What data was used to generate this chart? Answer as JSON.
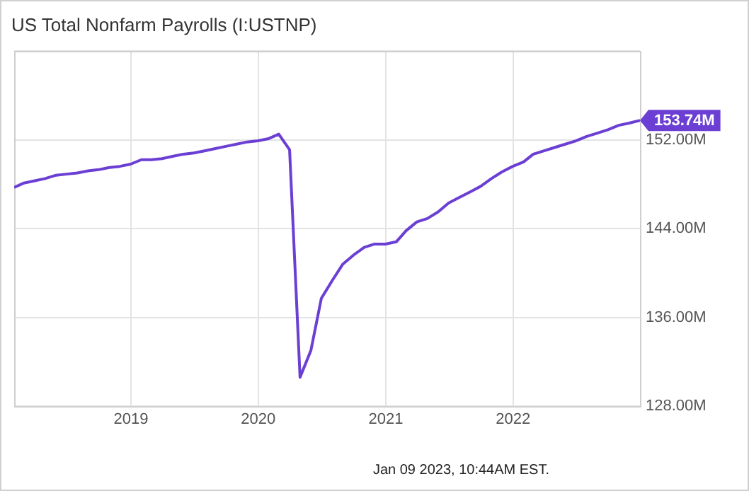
{
  "chart_data": {
    "type": "line",
    "title": "US Total Nonfarm Payrolls (I:USTNP)",
    "x": [
      "2018-01-31",
      "2018-02-28",
      "2018-03-31",
      "2018-04-30",
      "2018-05-31",
      "2018-06-30",
      "2018-07-31",
      "2018-08-31",
      "2018-09-30",
      "2018-10-31",
      "2018-11-30",
      "2018-12-31",
      "2019-01-31",
      "2019-02-28",
      "2019-03-31",
      "2019-04-30",
      "2019-05-31",
      "2019-06-30",
      "2019-07-31",
      "2019-08-31",
      "2019-09-30",
      "2019-10-31",
      "2019-11-30",
      "2019-12-31",
      "2020-01-31",
      "2020-02-29",
      "2020-03-31",
      "2020-04-30",
      "2020-05-31",
      "2020-06-30",
      "2020-07-31",
      "2020-08-31",
      "2020-09-30",
      "2020-10-31",
      "2020-11-30",
      "2020-12-31",
      "2021-01-31",
      "2021-02-28",
      "2021-03-31",
      "2021-04-30",
      "2021-05-31",
      "2021-06-30",
      "2021-07-31",
      "2021-08-31",
      "2021-09-30",
      "2021-10-31",
      "2021-11-30",
      "2021-12-31",
      "2022-01-31",
      "2022-02-28",
      "2022-03-31",
      "2022-04-30",
      "2022-05-31",
      "2022-06-30",
      "2022-07-31",
      "2022-08-31",
      "2022-09-30",
      "2022-10-31",
      "2022-11-30",
      "2022-12-31"
    ],
    "series": [
      {
        "color": "#6b3fd4",
        "values": [
          147.7,
          148.1,
          148.3,
          148.5,
          148.8,
          148.9,
          149.0,
          149.2,
          149.3,
          149.5,
          149.6,
          149.8,
          150.2,
          150.2,
          150.3,
          150.5,
          150.7,
          150.8,
          151.0,
          151.2,
          151.4,
          151.6,
          151.8,
          151.9,
          152.1,
          152.5,
          151.1,
          130.6,
          133.0,
          137.7,
          139.3,
          140.8,
          141.6,
          142.3,
          142.6,
          142.6,
          142.8,
          143.8,
          144.6,
          144.9,
          145.5,
          146.3,
          146.8,
          147.3,
          147.8,
          148.5,
          149.1,
          149.6,
          150.0,
          150.7,
          151.0,
          151.3,
          151.6,
          151.9,
          152.3,
          152.6,
          152.9,
          153.3,
          153.5,
          153.74
        ],
        "value_labels": [
          null,
          null,
          null,
          null,
          null,
          null,
          null,
          null,
          null,
          null,
          null,
          null,
          null,
          null,
          null,
          null,
          null,
          null,
          null,
          null,
          null,
          null,
          null,
          null,
          null,
          null,
          null,
          null,
          null,
          null,
          null,
          null,
          null,
          null,
          null,
          null,
          null,
          null,
          null,
          null,
          null,
          null,
          null,
          null,
          null,
          null,
          null,
          null,
          null,
          null,
          null,
          null,
          null,
          null,
          null,
          null,
          null,
          null,
          null,
          "153.74M"
        ]
      }
    ],
    "xlim": [
      "2018-01-31",
      "2022-12-31"
    ],
    "xticks": [
      {
        "value": "2019",
        "label": "2019"
      },
      {
        "value": "2020",
        "label": "2020"
      },
      {
        "value": "2021",
        "label": "2021"
      },
      {
        "value": "2022",
        "label": "2022"
      }
    ],
    "ylim": [
      128,
      160
    ],
    "yticks": [
      {
        "value": 128,
        "label": "128.00M"
      },
      {
        "value": 136,
        "label": "136.00M"
      },
      {
        "value": 144,
        "label": "144.00M"
      },
      {
        "value": 152,
        "label": "152.00M"
      },
      {
        "value": 160,
        "label": null
      }
    ],
    "grid": true,
    "legend": false,
    "marker": "none",
    "line_style": "solid",
    "annotations": [
      "Jan 09 2023, 10:44AM EST."
    ]
  }
}
